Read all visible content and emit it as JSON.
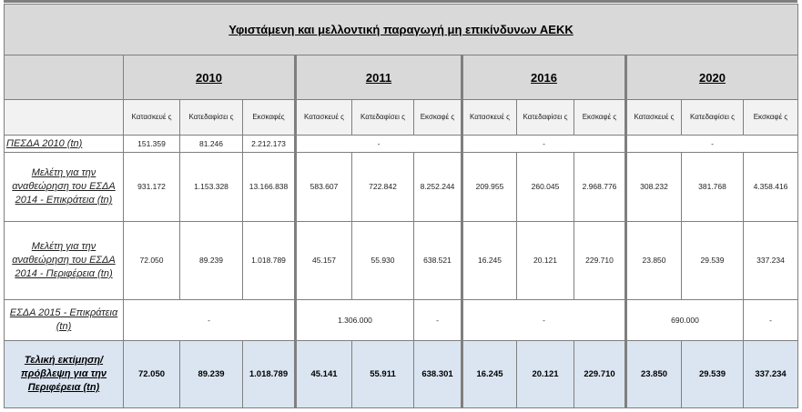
{
  "title": "Υφιστάμενη και μελλοντική παραγωγή μη επικίνδυνων ΑΕΚΚ",
  "years": [
    "2010",
    "2011",
    "2016",
    "2020"
  ],
  "subheaders": [
    "Κατασκευέ ς",
    "Κατεδαφίσει ς",
    "Εκσκαφές",
    "Κατασκευέ ς",
    "Κατεδαφίσει ς",
    "Εκσκαφέ ς",
    "Κατασκευέ ς",
    "Κατεδαφίσει ς",
    "Εκσκαφέ ς",
    "Κατασκευέ ς",
    "Κατεδαφίσει ς",
    "Εκσκαφέ ς"
  ],
  "rows": {
    "pesda": {
      "label": "ΠΕΣΔΑ 2010 (tn)",
      "v2010": [
        "151.359",
        "81.246",
        "2.212.173"
      ],
      "v2011": "-",
      "v2016": "-",
      "v2020": "-"
    },
    "study_national": {
      "label": "Μελέτη για την αναθεώρηση του ΕΣΔΑ 2014 - Επικράτεια (tn)",
      "values": [
        "931.172",
        "1.153.328",
        "13.166.838",
        "583.607",
        "722.842",
        "8.252.244",
        "209.955",
        "260.045",
        "2.968.776",
        "308.232",
        "381.768",
        "4.358.416"
      ]
    },
    "study_region": {
      "label": "Μελέτη για την αναθεώρηση του ΕΣΔΑ 2014 - Περιφέρεια (tn)",
      "values": [
        "72.050",
        "89.239",
        "1.018.789",
        "45.157",
        "55.930",
        "638.521",
        "16.245",
        "20.121",
        "229.710",
        "23.850",
        "29.539",
        "337.234"
      ]
    },
    "esda2015": {
      "label": "ΕΣΔΑ 2015 - Επικράτεια (tn)",
      "v2010": "-",
      "v2011_cd": "1.306.000",
      "v2011_ex": "-",
      "v2016": "-",
      "v2020_cd": "690.000",
      "v2020_ex": "-"
    },
    "final": {
      "label": "Τελική εκτίμηση/πρόβλεψη για την Περιφέρεια (tn)",
      "values": [
        "72.050",
        "89.239",
        "1.018.789",
        "45.141",
        "55.911",
        "638.301",
        "16.245",
        "20.121",
        "229.710",
        "23.850",
        "29.539",
        "337.234"
      ]
    }
  }
}
